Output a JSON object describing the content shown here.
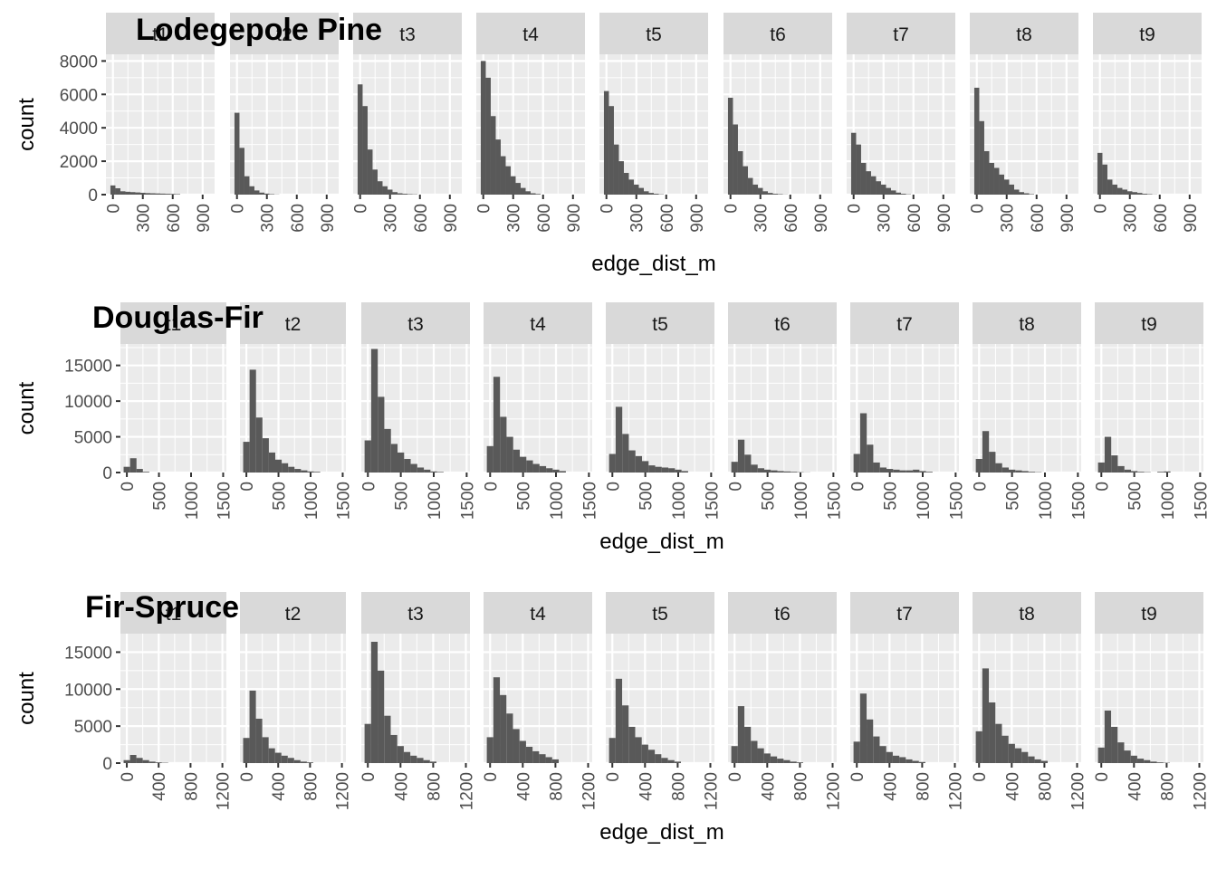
{
  "colors": {
    "panel_bg": "#ebebeb",
    "grid": "#ffffff",
    "strip_bg": "#d9d9d9",
    "bar": "#595959",
    "tick": "#4d4d4d"
  },
  "chart_data": [
    {
      "type": "bar",
      "title": "Lodegepole Pine",
      "xlabel": "edge_dist_m",
      "ylabel": "count",
      "facets": [
        "t1",
        "t2",
        "t3",
        "t4",
        "t5",
        "t6",
        "t7",
        "t8",
        "t9"
      ],
      "bin_width": 50,
      "xlim": [
        -70,
        1020
      ],
      "ylim": [
        0,
        8400
      ],
      "xticks": [
        0,
        300,
        600,
        900
      ],
      "xtick_labels": [
        "0",
        "300",
        "600",
        "900"
      ],
      "yticks": [
        0,
        2000,
        4000,
        6000,
        8000
      ],
      "ytick_labels": [
        "0",
        "2000",
        "4000",
        "6000",
        "8000"
      ],
      "series": [
        {
          "name": "t1",
          "values": [
            550,
            380,
            200,
            170,
            150,
            130,
            110,
            90,
            80,
            70,
            60,
            50,
            40,
            30
          ]
        },
        {
          "name": "t2",
          "values": [
            4900,
            2800,
            1100,
            500,
            250,
            120,
            60,
            30,
            10
          ]
        },
        {
          "name": "t3",
          "values": [
            6600,
            5300,
            2700,
            1500,
            800,
            500,
            300,
            150,
            80,
            50,
            30,
            20
          ]
        },
        {
          "name": "t4",
          "values": [
            8000,
            7000,
            4700,
            3300,
            2300,
            1700,
            1100,
            700,
            400,
            200,
            80,
            40
          ]
        },
        {
          "name": "t5",
          "values": [
            6200,
            5300,
            3000,
            2000,
            1300,
            900,
            600,
            400,
            200,
            100,
            50,
            20
          ]
        },
        {
          "name": "t6",
          "values": [
            5800,
            4200,
            2600,
            1700,
            1000,
            600,
            400,
            200,
            100,
            50,
            30,
            10
          ]
        },
        {
          "name": "t7",
          "values": [
            3700,
            3000,
            1900,
            1400,
            1100,
            800,
            600,
            400,
            250,
            120,
            50,
            20
          ]
        },
        {
          "name": "t8",
          "values": [
            6400,
            4400,
            2600,
            1900,
            1600,
            1200,
            900,
            600,
            300,
            150,
            80,
            30
          ]
        },
        {
          "name": "t9",
          "values": [
            2500,
            1800,
            900,
            600,
            400,
            300,
            200,
            150,
            100,
            50,
            30,
            10
          ]
        }
      ]
    },
    {
      "type": "bar",
      "title": "Douglas-Fir",
      "xlabel": "edge_dist_m",
      "ylabel": "count",
      "facets": [
        "t1",
        "t2",
        "t3",
        "t4",
        "t5",
        "t6",
        "t7",
        "t8",
        "t9"
      ],
      "bin_width": 100,
      "xlim": [
        -100,
        1550
      ],
      "ylim": [
        0,
        18000
      ],
      "xticks": [
        0,
        500,
        1000,
        1500
      ],
      "xtick_labels": [
        "0",
        "500",
        "1000",
        "1500"
      ],
      "yticks": [
        0,
        5000,
        10000,
        15000
      ],
      "ytick_labels": [
        "0",
        "5000",
        "10000",
        "15000"
      ],
      "series": [
        {
          "name": "t1",
          "values": [
            800,
            2000,
            500,
            100
          ]
        },
        {
          "name": "t2",
          "values": [
            4300,
            14400,
            7700,
            4800,
            2800,
            1800,
            1300,
            800,
            500,
            300,
            150,
            100
          ]
        },
        {
          "name": "t3",
          "values": [
            4500,
            17300,
            10600,
            6100,
            4000,
            2800,
            1900,
            1200,
            700,
            400,
            150,
            80
          ]
        },
        {
          "name": "t4",
          "values": [
            3700,
            13400,
            7800,
            5000,
            3200,
            2200,
            1700,
            1200,
            900,
            600,
            400,
            200
          ]
        },
        {
          "name": "t5",
          "values": [
            2600,
            9200,
            5400,
            3100,
            2300,
            1600,
            1000,
            800,
            700,
            600,
            400,
            200
          ]
        },
        {
          "name": "t6",
          "values": [
            1500,
            4600,
            2500,
            1100,
            600,
            400,
            300,
            200,
            150,
            100,
            50,
            20
          ]
        },
        {
          "name": "t7",
          "values": [
            2600,
            8300,
            3900,
            1400,
            700,
            500,
            400,
            300,
            300,
            400,
            200,
            100
          ]
        },
        {
          "name": "t8",
          "values": [
            1900,
            5800,
            2900,
            1300,
            700,
            400,
            300,
            200,
            100,
            50
          ]
        },
        {
          "name": "t9",
          "values": [
            1400,
            5000,
            2400,
            900,
            400,
            200,
            100,
            50,
            0,
            100,
            150,
            0
          ]
        }
      ]
    },
    {
      "type": "bar",
      "title": "Fir-Spruce",
      "xlabel": "edge_dist_m",
      "ylabel": "count",
      "facets": [
        "t1",
        "t2",
        "t3",
        "t4",
        "t5",
        "t6",
        "t7",
        "t8",
        "t9"
      ],
      "bin_width": 80,
      "xlim": [
        -80,
        1250
      ],
      "ylim": [
        0,
        17500
      ],
      "xticks": [
        0,
        400,
        800,
        1200
      ],
      "xtick_labels": [
        "0",
        "400",
        "800",
        "1200"
      ],
      "yticks": [
        0,
        5000,
        10000,
        15000
      ],
      "ytick_labels": [
        "0",
        "5000",
        "10000",
        "15000"
      ],
      "series": [
        {
          "name": "t1",
          "values": [
            400,
            1100,
            700,
            400,
            200,
            100,
            50
          ]
        },
        {
          "name": "t2",
          "values": [
            3400,
            9800,
            6000,
            3500,
            2000,
            1400,
            1000,
            700,
            400,
            200,
            100
          ]
        },
        {
          "name": "t3",
          "values": [
            5300,
            16400,
            12500,
            6400,
            3800,
            2300,
            1500,
            1000,
            700,
            400,
            200
          ]
        },
        {
          "name": "t4",
          "values": [
            3500,
            11600,
            9200,
            6700,
            4600,
            3000,
            2200,
            1600,
            1200,
            800,
            500
          ]
        },
        {
          "name": "t5",
          "values": [
            3400,
            11400,
            7800,
            4900,
            3500,
            2500,
            1800,
            1200,
            700,
            400,
            200
          ]
        },
        {
          "name": "t6",
          "values": [
            2300,
            7700,
            4900,
            3000,
            2000,
            1300,
            900,
            600,
            400,
            200,
            100
          ]
        },
        {
          "name": "t7",
          "values": [
            2900,
            9400,
            5900,
            3600,
            2300,
            1500,
            1000,
            800,
            500,
            300,
            150
          ]
        },
        {
          "name": "t8",
          "values": [
            4300,
            12800,
            8200,
            5300,
            3700,
            2600,
            2000,
            1500,
            900,
            500,
            300
          ]
        },
        {
          "name": "t9",
          "values": [
            2100,
            7100,
            4900,
            2800,
            1700,
            1000,
            600,
            400,
            200,
            100,
            50
          ]
        }
      ]
    }
  ]
}
